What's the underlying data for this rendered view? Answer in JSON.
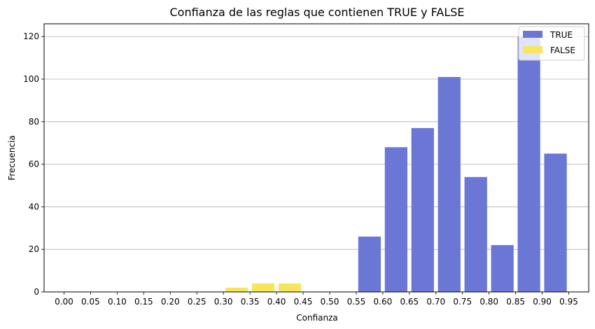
{
  "chart_data": {
    "type": "bar",
    "title": "Confianza de las reglas que contienen TRUE y FALSE",
    "xlabel": "Confianza",
    "ylabel": "Frecuencia",
    "xlim": [
      -0.0375,
      0.9875
    ],
    "ylim": [
      0,
      126
    ],
    "bin_width": 0.05,
    "x_ticks": [
      "0.00",
      "0.05",
      "0.10",
      "0.15",
      "0.20",
      "0.25",
      "0.30",
      "0.35",
      "0.40",
      "0.45",
      "0.50",
      "0.55",
      "0.60",
      "0.65",
      "0.70",
      "0.75",
      "0.80",
      "0.85",
      "0.90",
      "0.95"
    ],
    "y_ticks": [
      0,
      20,
      40,
      60,
      80,
      100,
      120
    ],
    "grid": "y-axis",
    "legend_position": "top-right",
    "series": [
      {
        "name": "TRUE",
        "color": "#6b77d5",
        "bins": [
          {
            "start": 0.55,
            "value": 26
          },
          {
            "start": 0.6,
            "value": 68
          },
          {
            "start": 0.65,
            "value": 77
          },
          {
            "start": 0.7,
            "value": 101
          },
          {
            "start": 0.75,
            "value": 54
          },
          {
            "start": 0.8,
            "value": 22
          },
          {
            "start": 0.85,
            "value": 120
          },
          {
            "start": 0.9,
            "value": 65
          }
        ]
      },
      {
        "name": "FALSE",
        "color": "#f7e65c",
        "bins": [
          {
            "start": 0.3,
            "value": 2
          },
          {
            "start": 0.35,
            "value": 4
          },
          {
            "start": 0.4,
            "value": 4
          }
        ]
      }
    ]
  }
}
